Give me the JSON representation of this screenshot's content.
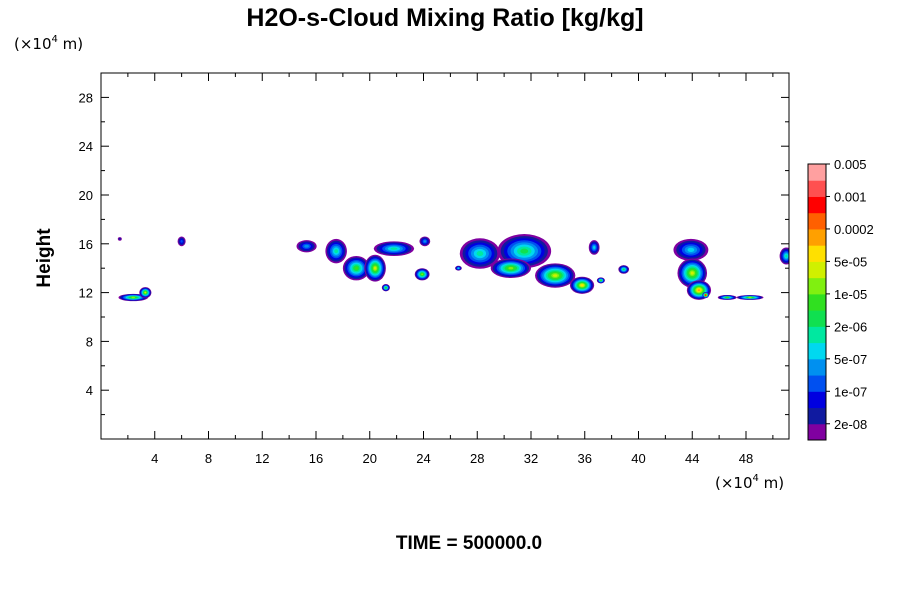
{
  "chart_data": {
    "type": "heatmap",
    "title": "H2O-s-Cloud Mixing Ratio [kg/kg]",
    "xlabel": "",
    "ylabel": "Height",
    "x_unit": {
      "prefix": "(×10",
      "exp": "4",
      "suffix": " m)"
    },
    "y_unit": {
      "prefix": "(×10",
      "exp": "4",
      "suffix": " m)"
    },
    "xlim": [
      0,
      51.2
    ],
    "ylim": [
      0,
      30
    ],
    "x_ticks": [
      "4",
      "8",
      "12",
      "16",
      "20",
      "24",
      "28",
      "32",
      "36",
      "40",
      "44",
      "48"
    ],
    "y_ticks": [
      "4",
      "8",
      "12",
      "16",
      "20",
      "24",
      "28"
    ],
    "footer": "TIME = 500000.0",
    "colorbar": {
      "colors": [
        "#8000a0",
        "#101aa0",
        "#0000e0",
        "#0050f0",
        "#0090f0",
        "#00d8f0",
        "#00e8a0",
        "#10e050",
        "#30e020",
        "#80f010",
        "#d0f000",
        "#ffe000",
        "#ffa000",
        "#ff6000",
        "#ff0000",
        "#ff5050",
        "#ffa0a0"
      ],
      "labels": [
        "2e-08",
        "1e-07",
        "5e-07",
        "2e-06",
        "1e-05",
        "5e-05",
        "0.0002",
        "0.001",
        "0.005"
      ]
    },
    "cloud_regions": [
      {
        "x_center": 1.4,
        "y_center": 16.4,
        "x_width": 0.3,
        "y_height": 0.3,
        "core_level": 1
      },
      {
        "x_center": 2.4,
        "y_center": 11.6,
        "x_width": 2.2,
        "y_height": 0.6,
        "core_level": 9
      },
      {
        "x_center": 3.3,
        "y_center": 12.0,
        "x_width": 0.9,
        "y_height": 0.9,
        "core_level": 10
      },
      {
        "x_center": 6.0,
        "y_center": 16.2,
        "x_width": 0.6,
        "y_height": 0.8,
        "core_level": 3
      },
      {
        "x_center": 15.3,
        "y_center": 15.8,
        "x_width": 1.5,
        "y_height": 1.0,
        "core_level": 4
      },
      {
        "x_center": 17.5,
        "y_center": 15.4,
        "x_width": 1.6,
        "y_height": 2.0,
        "core_level": 6
      },
      {
        "x_center": 19.0,
        "y_center": 14.0,
        "x_width": 2.0,
        "y_height": 2.0,
        "core_level": 8
      },
      {
        "x_center": 20.4,
        "y_center": 14.0,
        "x_width": 1.6,
        "y_height": 2.2,
        "core_level": 10
      },
      {
        "x_center": 21.8,
        "y_center": 15.6,
        "x_width": 3.0,
        "y_height": 1.2,
        "core_level": 6
      },
      {
        "x_center": 21.2,
        "y_center": 12.4,
        "x_width": 0.6,
        "y_height": 0.6,
        "core_level": 8
      },
      {
        "x_center": 24.1,
        "y_center": 16.2,
        "x_width": 0.8,
        "y_height": 0.8,
        "core_level": 4
      },
      {
        "x_center": 23.9,
        "y_center": 13.5,
        "x_width": 1.1,
        "y_height": 1.0,
        "core_level": 9
      },
      {
        "x_center": 26.6,
        "y_center": 14.0,
        "x_width": 0.5,
        "y_height": 0.4,
        "core_level": 5
      },
      {
        "x_center": 28.2,
        "y_center": 15.2,
        "x_width": 3.0,
        "y_height": 2.5,
        "core_level": 6
      },
      {
        "x_center": 31.5,
        "y_center": 15.4,
        "x_width": 4.0,
        "y_height": 2.8,
        "core_level": 7
      },
      {
        "x_center": 30.5,
        "y_center": 14.0,
        "x_width": 3.0,
        "y_height": 1.6,
        "core_level": 9
      },
      {
        "x_center": 33.8,
        "y_center": 13.4,
        "x_width": 3.0,
        "y_height": 2.0,
        "core_level": 10
      },
      {
        "x_center": 35.8,
        "y_center": 12.6,
        "x_width": 1.8,
        "y_height": 1.4,
        "core_level": 11
      },
      {
        "x_center": 36.7,
        "y_center": 15.7,
        "x_width": 0.8,
        "y_height": 1.2,
        "core_level": 5
      },
      {
        "x_center": 37.2,
        "y_center": 13.0,
        "x_width": 0.6,
        "y_height": 0.5,
        "core_level": 8
      },
      {
        "x_center": 38.9,
        "y_center": 13.9,
        "x_width": 0.8,
        "y_height": 0.7,
        "core_level": 7
      },
      {
        "x_center": 43.9,
        "y_center": 15.5,
        "x_width": 2.6,
        "y_height": 1.8,
        "core_level": 5
      },
      {
        "x_center": 44.0,
        "y_center": 13.6,
        "x_width": 2.2,
        "y_height": 2.4,
        "core_level": 10
      },
      {
        "x_center": 44.5,
        "y_center": 12.2,
        "x_width": 1.8,
        "y_height": 1.6,
        "core_level": 12
      },
      {
        "x_center": 45.0,
        "y_center": 11.8,
        "x_width": 0.5,
        "y_height": 0.5,
        "core_level": 14
      },
      {
        "x_center": 46.6,
        "y_center": 11.6,
        "x_width": 1.4,
        "y_height": 0.4,
        "core_level": 8
      },
      {
        "x_center": 48.3,
        "y_center": 11.6,
        "x_width": 2.0,
        "y_height": 0.4,
        "core_level": 9
      },
      {
        "x_center": 51.0,
        "y_center": 15.0,
        "x_width": 1.0,
        "y_height": 1.4,
        "core_level": 6
      }
    ]
  }
}
